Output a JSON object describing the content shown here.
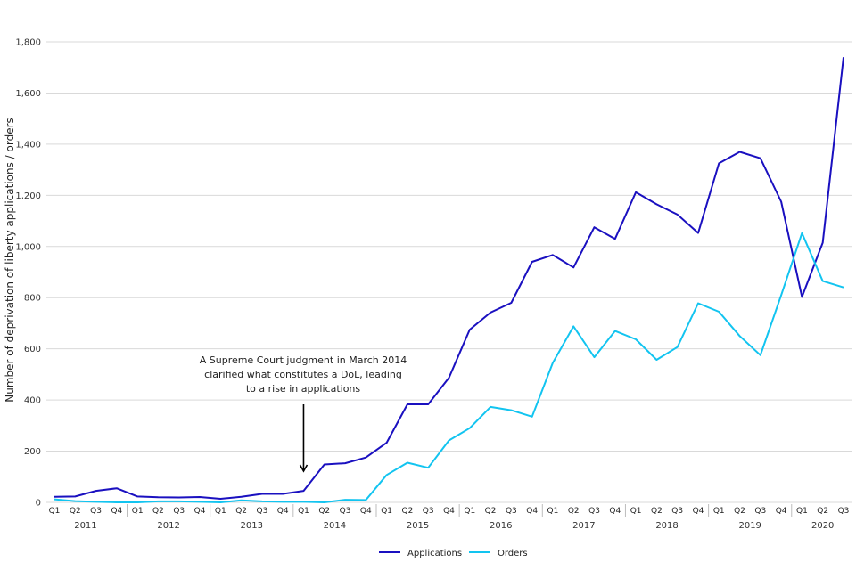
{
  "chart_data": {
    "type": "line",
    "title": "",
    "ylabel": "Number of deprivation of liberty applications / orders",
    "xlabel": "",
    "ylim": [
      0,
      1800
    ],
    "yticks": [
      0,
      200,
      400,
      600,
      800,
      1000,
      1200,
      1400,
      1600,
      1800
    ],
    "ytick_labels": [
      "0",
      "200",
      "400",
      "600",
      "800",
      "1,000",
      "1,200",
      "1,400",
      "1,600",
      "1,800"
    ],
    "x": [
      "Q1",
      "Q2",
      "Q3",
      "Q4",
      "Q1",
      "Q2",
      "Q3",
      "Q4",
      "Q1",
      "Q2",
      "Q3",
      "Q4",
      "Q1",
      "Q2",
      "Q3",
      "Q4",
      "Q1",
      "Q2",
      "Q3",
      "Q4",
      "Q1",
      "Q2",
      "Q3",
      "Q4",
      "Q1",
      "Q2",
      "Q3",
      "Q4",
      "Q1",
      "Q2",
      "Q3",
      "Q4",
      "Q1",
      "Q2",
      "Q3",
      "Q4",
      "Q1",
      "Q2",
      "Q3"
    ],
    "years": [
      "2011",
      "2012",
      "2013",
      "2014",
      "2015",
      "2016",
      "2017",
      "2018",
      "2019",
      "2020"
    ],
    "grid": true,
    "legend_position": "bottom",
    "series": [
      {
        "name": "Applications",
        "color": "#1a10c0",
        "values": [
          22,
          23,
          45,
          55,
          23,
          20,
          19,
          21,
          14,
          22,
          33,
          33,
          45,
          148,
          153,
          175,
          233,
          383,
          383,
          487,
          675,
          742,
          780,
          940,
          967,
          918,
          1075,
          1030,
          1212,
          1165,
          1125,
          1053,
          1325,
          1370,
          1345,
          1175,
          803,
          1015,
          1740
        ]
      },
      {
        "name": "Orders",
        "color": "#12c4f0",
        "values": [
          12,
          5,
          2,
          0,
          0,
          4,
          4,
          2,
          0,
          8,
          4,
          2,
          2,
          0,
          10,
          9,
          107,
          155,
          135,
          242,
          290,
          373,
          360,
          335,
          545,
          688,
          567,
          670,
          637,
          557,
          607,
          778,
          745,
          650,
          575,
          810,
          1052,
          865,
          840
        ]
      }
    ],
    "annotation": {
      "lines": [
        "A Supreme Court judgment in March 2014",
        "clarified what constitutes a DoL, leading",
        "to a rise in applications"
      ],
      "points_to_index": 12
    }
  }
}
